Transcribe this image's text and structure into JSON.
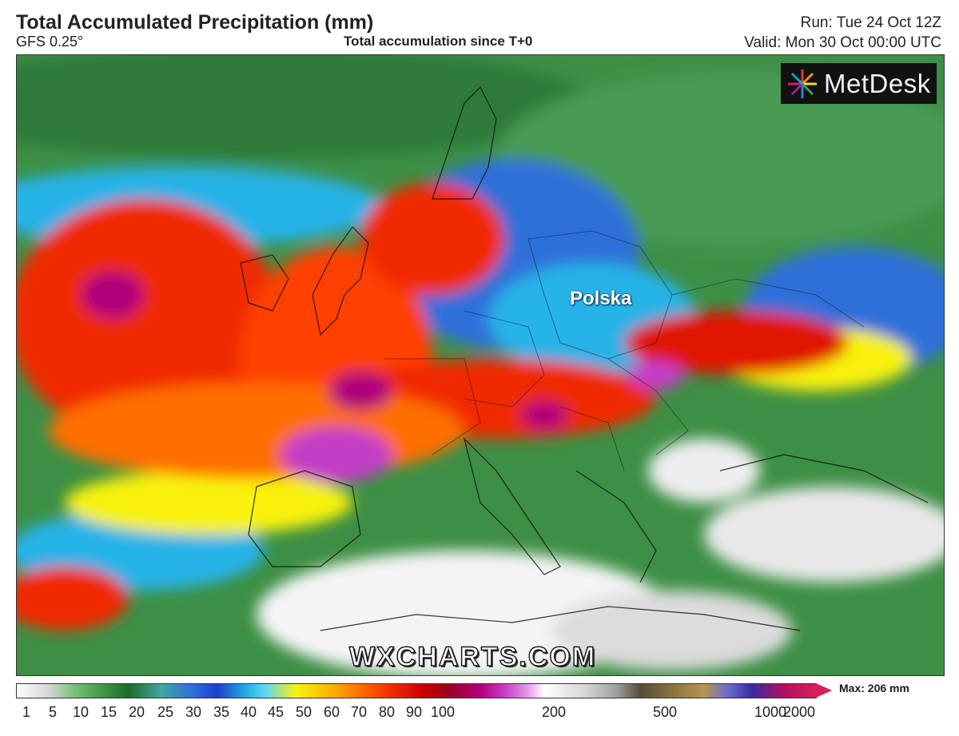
{
  "header": {
    "title": "Total Accumulated Precipitation (mm)",
    "model": "GFS 0.25°",
    "accumulation": "Total accumulation since T+0",
    "run": "Run: Tue 24 Oct 12Z",
    "valid": "Valid: Mon 30 Oct 00:00 UTC"
  },
  "map": {
    "country_label": "Polska",
    "watermark": "WXCHARTS.COM",
    "logo_text": "MetDesk"
  },
  "legend": {
    "max_label": "Max: 206 mm",
    "ticks": [
      "1",
      "5",
      "10",
      "15",
      "20",
      "25",
      "30",
      "35",
      "40",
      "45",
      "50",
      "60",
      "70",
      "80",
      "90",
      "100",
      "200",
      "500",
      "1000",
      "2000"
    ]
  },
  "colors": {
    "land_low": "#3d8f45",
    "moderate": "#2f6fd9",
    "heavy": "#f02a00",
    "extreme": "#b1007a",
    "dry": "#ffffff"
  }
}
